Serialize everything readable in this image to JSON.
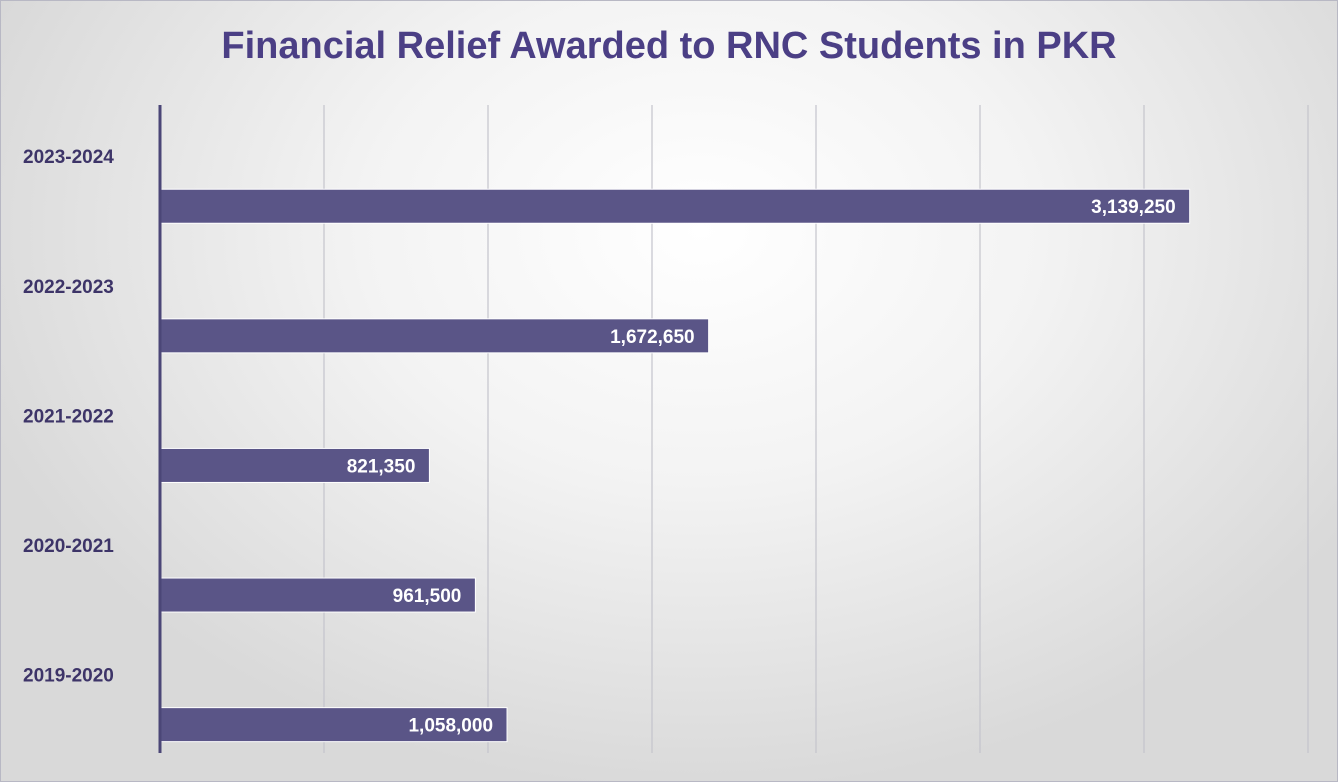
{
  "chart_data": {
    "type": "bar",
    "orientation": "horizontal",
    "title": "Financial Relief Awarded to RNC Students in PKR",
    "xlabel": "",
    "ylabel": "",
    "categories": [
      "2023-2024",
      "2022-2023",
      "2021-2022",
      "2020-2021",
      "2019-2020"
    ],
    "values": [
      3139250,
      1672650,
      821350,
      961500,
      1058000
    ],
    "value_labels": [
      "3,139,250",
      "1,672,650",
      "821,350",
      "961,500",
      "1,058,000"
    ],
    "xlim": [
      0,
      3500000
    ],
    "x_gridlines": [
      500000,
      1000000,
      1500000,
      2000000,
      2500000,
      3000000,
      3500000
    ],
    "grid": true,
    "legend": "none",
    "bar_color": "#5a5587",
    "title_color": "#4b3f85"
  }
}
